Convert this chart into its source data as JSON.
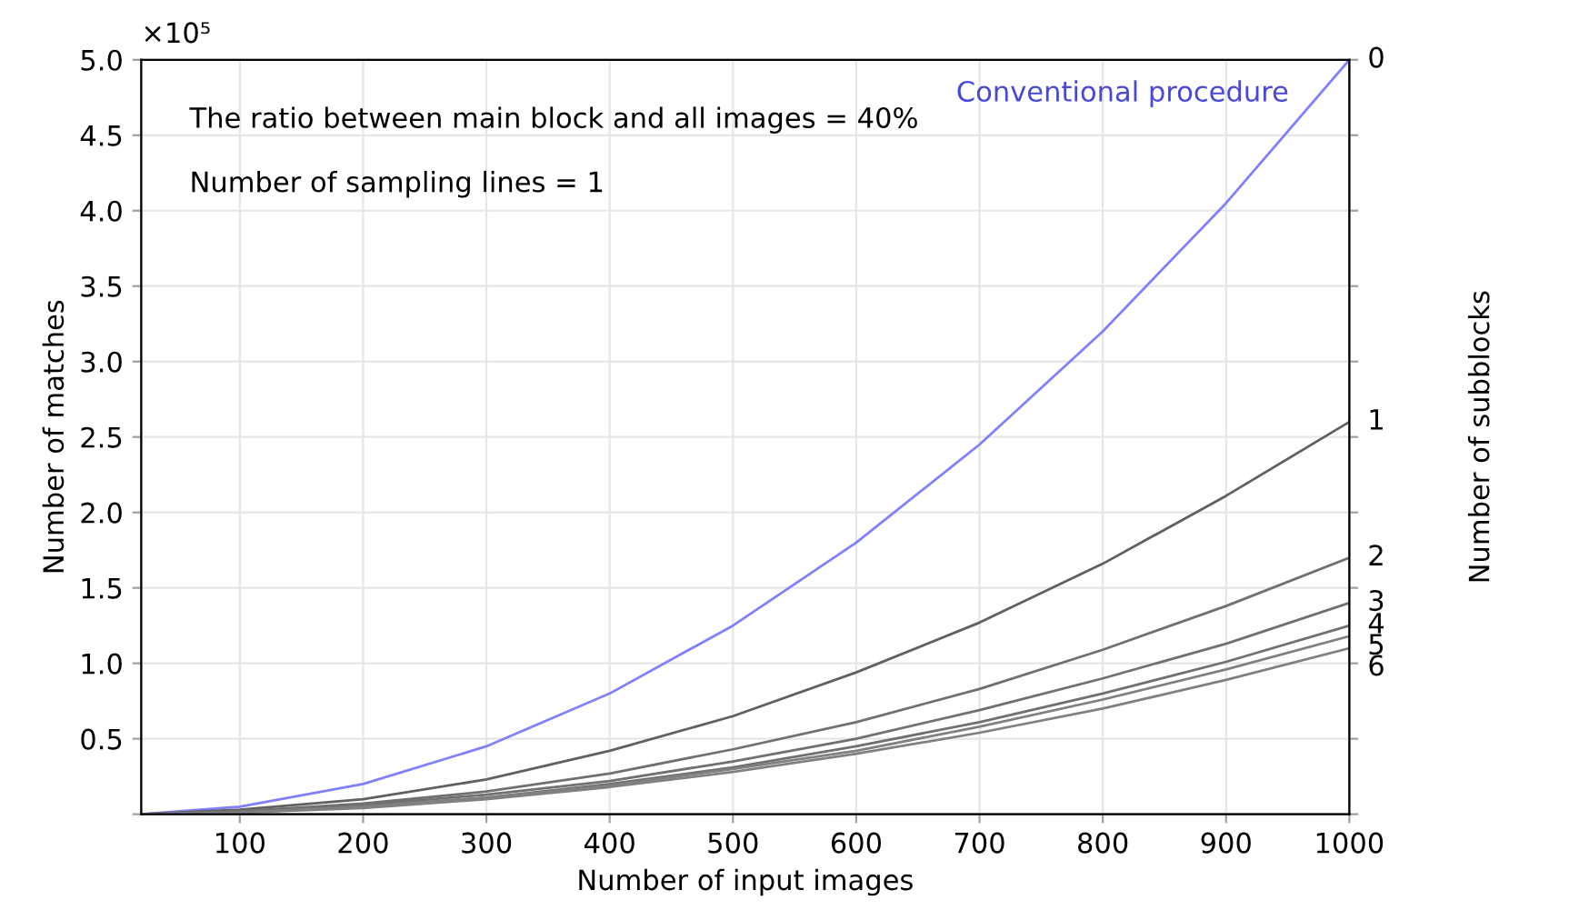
{
  "chart_data": {
    "type": "line",
    "xlabel": "Number of input images",
    "ylabel": "Number of matches",
    "y2label": "Number of subblocks",
    "annotations": [
      "×10⁵",
      "The ratio between main block and all images = 40%",
      "Number of sampling lines = 1",
      "Conventional procedure"
    ],
    "x": [
      20,
      100,
      200,
      300,
      400,
      500,
      600,
      700,
      800,
      900,
      1000
    ],
    "series": [
      {
        "name": "0",
        "color": "#8080ff",
        "values": [
          0,
          0.05,
          0.2,
          0.45,
          0.8,
          1.25,
          1.8,
          2.45,
          3.2,
          4.05,
          5.0
        ]
      },
      {
        "name": "1",
        "color": "#606060",
        "values": [
          0,
          0.03,
          0.1,
          0.23,
          0.42,
          0.65,
          0.94,
          1.27,
          1.66,
          2.11,
          2.6
        ]
      },
      {
        "name": "2",
        "color": "#707070",
        "values": [
          0,
          0.02,
          0.07,
          0.15,
          0.27,
          0.43,
          0.61,
          0.83,
          1.09,
          1.38,
          1.7
        ]
      },
      {
        "name": "3",
        "color": "#707070",
        "values": [
          0,
          0.01,
          0.06,
          0.13,
          0.22,
          0.35,
          0.5,
          0.69,
          0.9,
          1.13,
          1.4
        ]
      },
      {
        "name": "4",
        "color": "#707070",
        "values": [
          0,
          0.01,
          0.05,
          0.11,
          0.2,
          0.31,
          0.45,
          0.61,
          0.8,
          1.01,
          1.25
        ]
      },
      {
        "name": "5",
        "color": "#808080",
        "values": [
          0,
          0.01,
          0.05,
          0.11,
          0.19,
          0.3,
          0.42,
          0.58,
          0.76,
          0.96,
          1.18
        ]
      },
      {
        "name": "6",
        "color": "#808080",
        "values": [
          0,
          0.01,
          0.04,
          0.1,
          0.18,
          0.28,
          0.4,
          0.54,
          0.7,
          0.89,
          1.1
        ]
      }
    ],
    "xlim": [
      20,
      1000
    ],
    "ylim": [
      0,
      5.0
    ],
    "xticks": [
      100,
      200,
      300,
      400,
      500,
      600,
      700,
      800,
      900,
      1000
    ],
    "yticks": [
      {
        "value": 0,
        "label": null
      },
      {
        "value": 0.5,
        "label": "0.5"
      },
      {
        "value": 1.0,
        "label": "1.0"
      },
      {
        "value": 1.5,
        "label": "1.5"
      },
      {
        "value": 2.0,
        "label": "2.0"
      },
      {
        "value": 2.5,
        "label": "2.5"
      },
      {
        "value": 3.0,
        "label": "3.0"
      },
      {
        "value": 3.5,
        "label": "3.5"
      },
      {
        "value": 4.0,
        "label": "4.0"
      },
      {
        "value": 4.5,
        "label": "4.5"
      },
      {
        "value": 5.0,
        "label": "5.0"
      }
    ],
    "grid": true,
    "legend": false,
    "marker": "none",
    "line_style": "solid"
  }
}
